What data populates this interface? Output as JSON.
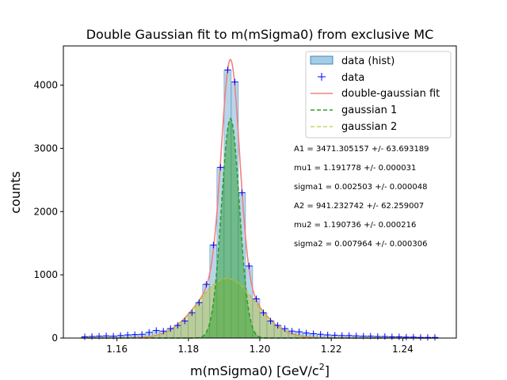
{
  "chart_data": {
    "type": "bar",
    "title": "Double Gaussian fit to m(mSigma0) from exclusive MC",
    "xlabel_main": "m(mSigma0) [GeV/c",
    "xlabel_sup": "2",
    "xlabel_end": "]",
    "ylabel": "counts",
    "xlim": [
      1.145,
      1.255
    ],
    "ylim": [
      0,
      4620
    ],
    "x_ticks": [
      1.16,
      1.18,
      1.2,
      1.22,
      1.24
    ],
    "x_tick_labels": [
      "1.16",
      "1.18",
      "1.20",
      "1.22",
      "1.24"
    ],
    "y_ticks": [
      0,
      1000,
      2000,
      3000,
      4000
    ],
    "y_tick_labels": [
      "0",
      "1000",
      "2000",
      "3000",
      "4000"
    ],
    "bin_width": 0.002,
    "bin_centers": [
      1.151,
      1.153,
      1.155,
      1.157,
      1.159,
      1.161,
      1.163,
      1.165,
      1.167,
      1.169,
      1.171,
      1.173,
      1.175,
      1.177,
      1.179,
      1.181,
      1.183,
      1.185,
      1.187,
      1.189,
      1.191,
      1.193,
      1.195,
      1.197,
      1.199,
      1.201,
      1.203,
      1.205,
      1.207,
      1.209,
      1.211,
      1.213,
      1.215,
      1.217,
      1.219,
      1.221,
      1.223,
      1.225,
      1.227,
      1.229,
      1.231,
      1.233,
      1.235,
      1.237,
      1.239,
      1.241,
      1.243,
      1.245,
      1.247,
      1.249
    ],
    "counts": [
      20,
      25,
      30,
      35,
      30,
      40,
      50,
      55,
      60,
      90,
      120,
      110,
      150,
      200,
      270,
      400,
      560,
      850,
      1470,
      2700,
      4240,
      4050,
      2300,
      1140,
      620,
      400,
      270,
      200,
      150,
      110,
      100,
      80,
      70,
      60,
      50,
      45,
      40,
      40,
      35,
      30,
      30,
      25,
      25,
      20,
      20,
      15,
      15,
      10,
      10,
      10
    ],
    "fit": {
      "A1": 3471.305157,
      "mu1": 1.191778,
      "sigma1": 0.002503,
      "A2": 941.232742,
      "mu2": 1.190736,
      "sigma2": 0.007964
    },
    "param_lines": [
      "A1 = 3471.305157 +/- 63.693189",
      "mu1 = 1.191778 +/- 0.000031",
      "sigma1 = 0.002503 +/- 0.000048",
      "A2 = 941.232742 +/- 62.259007",
      "mu2 = 1.190736 +/- 0.000216",
      "sigma2 = 0.007964 +/- 0.000306"
    ],
    "legend": {
      "placement": "upper-right",
      "entries": [
        "data (hist)",
        "data",
        "double-gaussian fit",
        "gaussian 1",
        "gaussian 2"
      ]
    },
    "colors": {
      "hist_fill": "#a6cbe3",
      "hist_edge": "#1f77b4",
      "data_marker": "#0000ff",
      "fit_line": "#f08080",
      "gauss1": "#2ca02c",
      "gauss2": "#bcbd22"
    },
    "grid": false
  }
}
